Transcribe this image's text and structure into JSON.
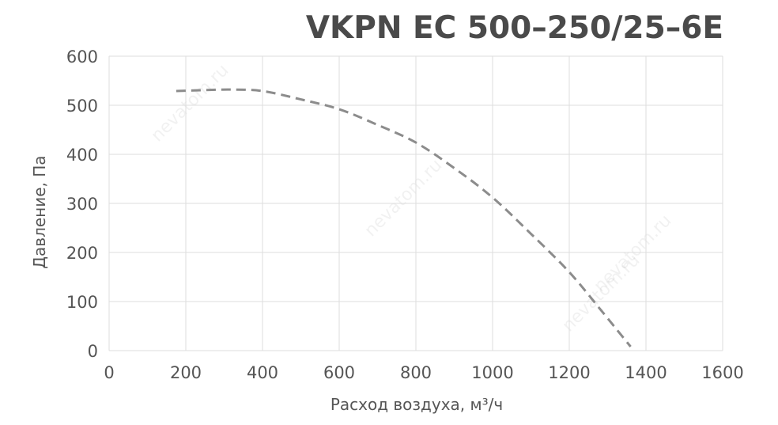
{
  "chart_data": {
    "type": "line",
    "title": "VKPN EC 500–250/25–6E",
    "xlabel": "Расход воздуха, м³/ч",
    "ylabel": "Давление, Па",
    "xlim": [
      0,
      1600
    ],
    "ylim": [
      0,
      600
    ],
    "x_ticks": [
      "0",
      "200",
      "400",
      "600",
      "800",
      "1000",
      "1200",
      "1400",
      "1600"
    ],
    "y_ticks": [
      "0",
      "100",
      "200",
      "300",
      "400",
      "500",
      "600"
    ],
    "grid": true,
    "line_style": "dashed",
    "series": [
      {
        "color": "#8c8c8c",
        "x": [
          175,
          250,
          320,
          400,
          500,
          600,
          700,
          800,
          900,
          1000,
          1100,
          1200,
          1280,
          1360
        ],
        "y": [
          529,
          531,
          532,
          529,
          512,
          492,
          460,
          424,
          372,
          312,
          238,
          160,
          85,
          8
        ]
      }
    ]
  },
  "watermark": {
    "text": "nevatom.ru",
    "brand": "nevatom"
  }
}
